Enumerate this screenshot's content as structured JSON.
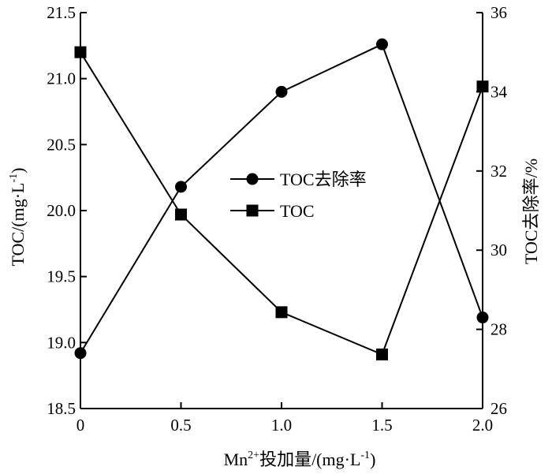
{
  "chart_data": {
    "type": "line",
    "x": [
      0,
      0.5,
      1.0,
      1.5,
      2.0
    ],
    "x_tick_labels": [
      "0",
      "0.5",
      "1.0",
      "1.5",
      "2.0"
    ],
    "y_left_tick_labels": [
      "18.5",
      "19.0",
      "19.5",
      "20.0",
      "20.5",
      "21.0",
      "21.5"
    ],
    "y_right_tick_labels": [
      "26",
      "28",
      "30",
      "32",
      "34",
      "36"
    ],
    "xlim": [
      0,
      2.0
    ],
    "ylim_left": [
      18.5,
      21.5
    ],
    "ylim_right": [
      26,
      36
    ],
    "xlabel": {
      "pre": "Mn",
      "sup": "2+",
      "post": "投加量/(mg·L",
      "sup2": "-1",
      "end": ")"
    },
    "ylabel_left": {
      "pre": "TOC/(mg·L",
      "sup": "-1",
      "end": ")"
    },
    "ylabel_right": "TOC去除率/%",
    "legend_position": "center",
    "grid": false,
    "series": [
      {
        "name": "TOC去除率",
        "axis": "right",
        "marker": "circle",
        "values": [
          27.4,
          31.6,
          34.0,
          35.2,
          28.3
        ]
      },
      {
        "name": "TOC",
        "axis": "left",
        "marker": "square",
        "values": [
          21.2,
          19.97,
          19.23,
          18.91,
          20.94
        ]
      }
    ]
  }
}
